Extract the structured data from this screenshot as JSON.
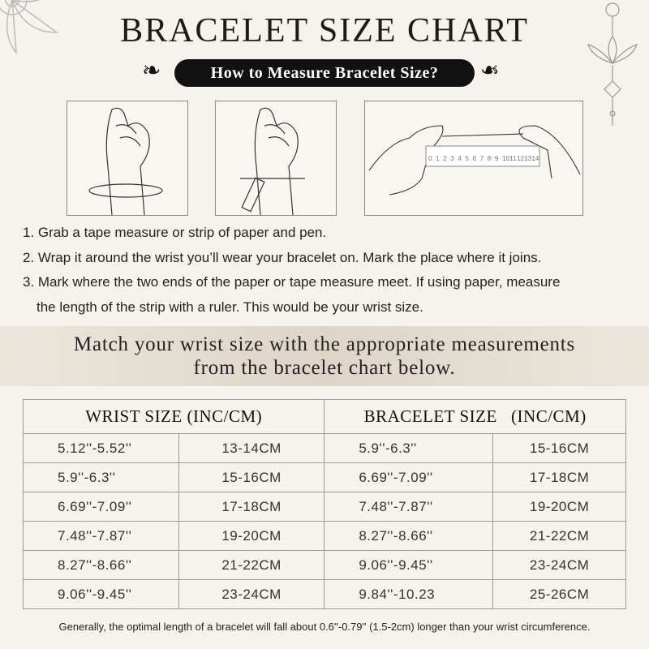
{
  "title": "BRACELET SIZE CHART",
  "subtitle": "How to Measure Bracelet Size?",
  "steps": [
    "1. Grab a tape measure or strip of paper and pen.",
    "2. Wrap it around the wrist you’ll wear your bracelet on. Mark the place where it joins.",
    "3. Mark where the two ends of the paper or tape measure meet. If using paper, measure",
    "the length of the strip with a ruler. This would be your wrist size."
  ],
  "ruler_numbers": [
    "0",
    "1",
    "2",
    "3",
    "4",
    "5",
    "6",
    "7",
    "8",
    "9",
    "10",
    "11",
    "12",
    "13",
    "14"
  ],
  "band": {
    "line1": "Match your wrist size with the appropriate measurements",
    "line2": "from the bracelet chart below."
  },
  "table": {
    "headers": [
      "WRIST SIZE (INC/CM)",
      "BRACELET SIZE   (INC/CM)"
    ],
    "rows": [
      [
        "5.12''-5.52''",
        "13-14CM",
        "5.9''-6.3''",
        "15-16CM"
      ],
      [
        "5.9''-6.3''",
        "15-16CM",
        "6.69''-7.09''",
        "17-18CM"
      ],
      [
        "6.69''-7.09''",
        "17-18CM",
        "7.48''-7.87''",
        "19-20CM"
      ],
      [
        "7.48''-7.87''",
        "19-20CM",
        "8.27''-8.66''",
        "21-22CM"
      ],
      [
        "8.27''-8.66''",
        "21-22CM",
        "9.06''-9.45''",
        "23-24CM"
      ],
      [
        "9.06''-9.45''",
        "23-24CM",
        "9.84''-10.23",
        "25-26CM"
      ]
    ]
  },
  "footnote": "Generally, the optimal length of a bracelet will fall about 0.6''-0.79'' (1.5-2cm) longer than your wrist circumference."
}
